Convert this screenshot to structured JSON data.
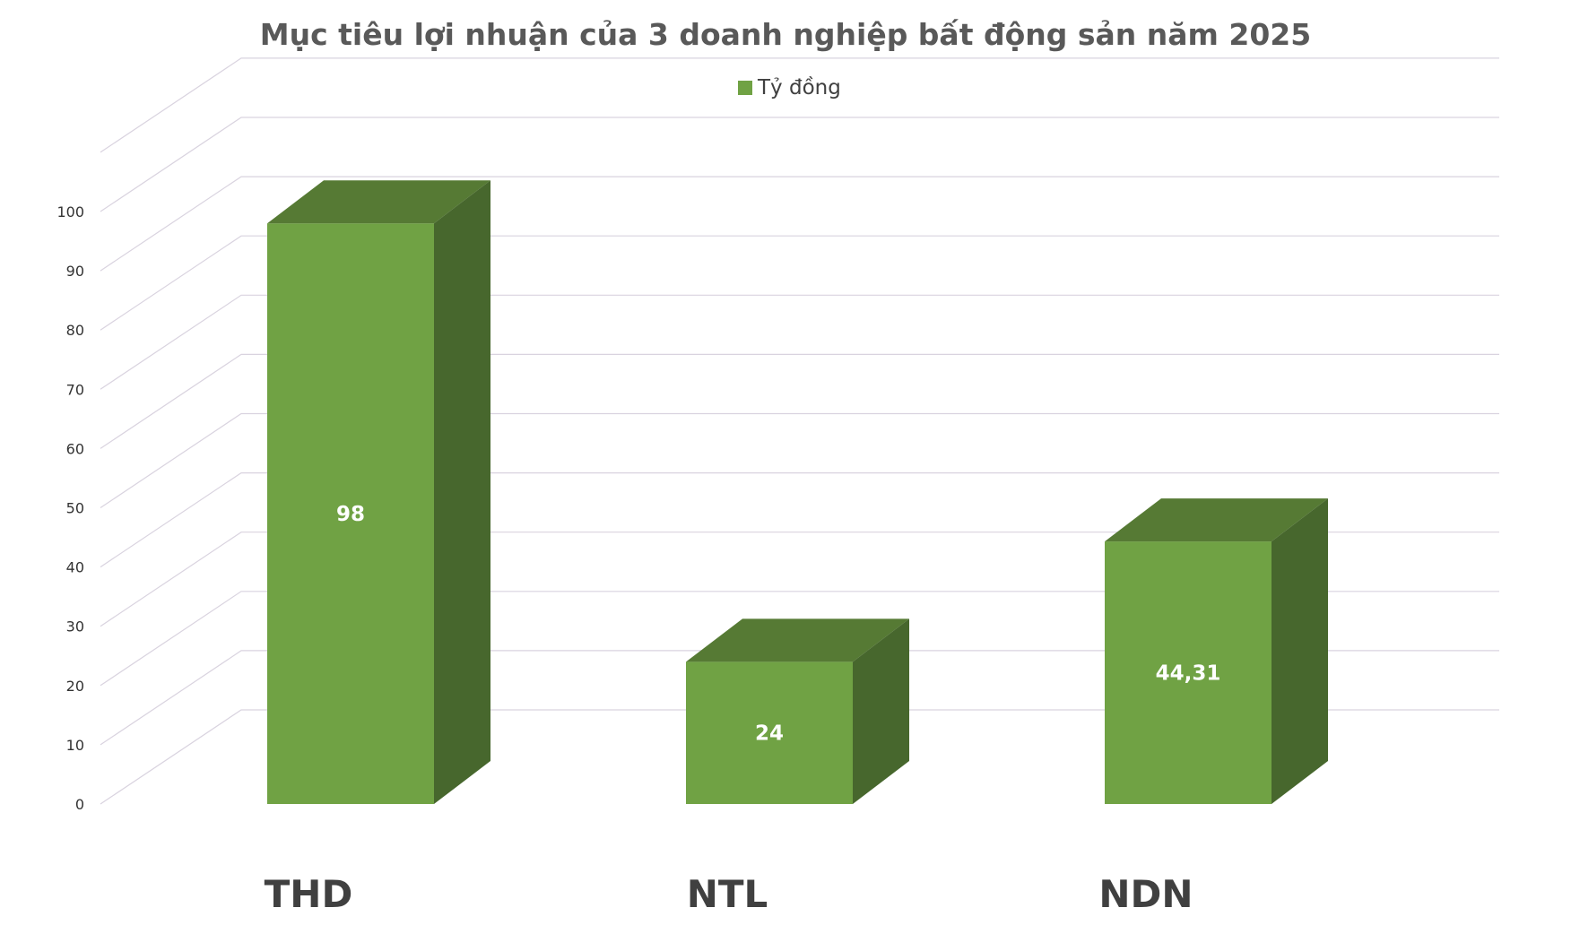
{
  "chart_data": {
    "type": "bar",
    "title": "Mục tiêu lợi nhuận của 3 doanh nghiệp bất động sản năm 2025",
    "legend": "Tỷ đồng",
    "legend_position": "top",
    "categories": [
      "THD",
      "NTL",
      "NDN"
    ],
    "series": [
      {
        "name": "Tỷ đồng",
        "values": [
          98,
          24,
          44.31
        ],
        "labels": [
          "98",
          "24",
          "44,31"
        ]
      }
    ],
    "yticks": [
      "0",
      "10",
      "20",
      "30",
      "40",
      "50",
      "60",
      "70",
      "80",
      "90",
      "100"
    ],
    "ylim": [
      0,
      110
    ],
    "grid": true,
    "style": "3d-column",
    "colors": {
      "front": "#70a244",
      "top": "#567a34",
      "side": "#47672d",
      "grid": "#d9d3df"
    }
  }
}
